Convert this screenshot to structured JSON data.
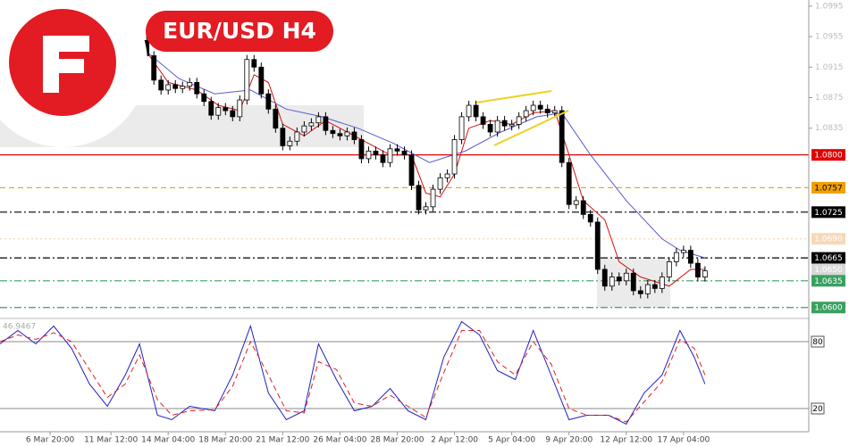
{
  "chart_data": [
    {
      "type": "candlestick",
      "title": "EUR/USD H4",
      "x": [
        41,
        43,
        45,
        47,
        49,
        51,
        53,
        55,
        57,
        59,
        61,
        63,
        65,
        67,
        69,
        71,
        73,
        75,
        77,
        79,
        81,
        83,
        85,
        87,
        89,
        91,
        93,
        95,
        97,
        99,
        101,
        103,
        105,
        107,
        109,
        111,
        113,
        115,
        117,
        119,
        121,
        123,
        125,
        127,
        129,
        131,
        133,
        135,
        137,
        139,
        141,
        143,
        145,
        147,
        149,
        151,
        153,
        155,
        157,
        159,
        161,
        163,
        165,
        167,
        169,
        171,
        173,
        175,
        177,
        179,
        181,
        183,
        185,
        187,
        189,
        191,
        193,
        195,
        197
      ],
      "open": [
        1.095,
        1.093,
        1.0898,
        1.0885,
        1.0892,
        1.0887,
        1.089,
        1.0895,
        1.088,
        1.087,
        1.0852,
        1.0862,
        1.0858,
        1.085,
        1.0872,
        1.0925,
        1.0915,
        1.088,
        1.086,
        1.0835,
        1.0812,
        1.0818,
        1.083,
        1.0838,
        1.0842,
        1.085,
        1.0832,
        1.0828,
        1.0825,
        1.083,
        1.082,
        1.0795,
        1.0805,
        1.08,
        1.079,
        1.0808,
        1.0805,
        1.08,
        1.076,
        1.0728,
        1.0732,
        1.0755,
        1.077,
        1.0775,
        1.082,
        1.085,
        1.0865,
        1.085,
        1.084,
        1.083,
        1.0845,
        1.0838,
        1.084,
        1.085,
        1.0858,
        1.0865,
        1.086,
        1.0855,
        1.0858,
        1.079,
        1.0735,
        1.074,
        1.0722,
        1.0712,
        1.065,
        1.0628,
        1.064,
        1.0635,
        1.0645,
        1.0622,
        1.0618,
        1.063,
        1.0625,
        1.064,
        1.066,
        1.0672,
        1.0675,
        1.0658,
        1.064
      ],
      "high": [
        1.0956,
        1.0936,
        1.0904,
        1.0898,
        1.0898,
        1.0896,
        1.0901,
        1.0901,
        1.0886,
        1.0876,
        1.0868,
        1.0868,
        1.0864,
        1.0878,
        1.0931,
        1.0931,
        1.0921,
        1.0886,
        1.0866,
        1.0841,
        1.0824,
        1.0836,
        1.0844,
        1.0848,
        1.0856,
        1.0856,
        1.0838,
        1.0834,
        1.0836,
        1.0836,
        1.0826,
        1.0811,
        1.0811,
        1.0806,
        1.0814,
        1.0814,
        1.0811,
        1.0806,
        1.0766,
        1.0738,
        1.0761,
        1.0776,
        1.0781,
        1.0826,
        1.0856,
        1.0871,
        1.0871,
        1.0856,
        1.0846,
        1.0851,
        1.0851,
        1.0846,
        1.0856,
        1.0864,
        1.0871,
        1.0871,
        1.0866,
        1.0864,
        1.0864,
        1.0796,
        1.0746,
        1.0746,
        1.0728,
        1.0718,
        1.0656,
        1.0646,
        1.0646,
        1.0651,
        1.0651,
        1.0628,
        1.0636,
        1.0636,
        1.0646,
        1.0666,
        1.0678,
        1.0681,
        1.0681,
        1.0664,
        1.0654
      ],
      "low": [
        1.0924,
        1.0892,
        1.0879,
        1.0879,
        1.0881,
        1.0881,
        1.0884,
        1.0874,
        1.0864,
        1.0846,
        1.0846,
        1.0852,
        1.0844,
        1.0844,
        1.0866,
        1.0909,
        1.0874,
        1.0854,
        1.0829,
        1.0806,
        1.0806,
        1.0812,
        1.0824,
        1.0832,
        1.0836,
        1.0826,
        1.0822,
        1.0819,
        1.0819,
        1.0814,
        1.0789,
        1.0789,
        1.0794,
        1.0784,
        1.0784,
        1.0799,
        1.0794,
        1.0754,
        1.0722,
        1.0722,
        1.0726,
        1.0749,
        1.0764,
        1.0769,
        1.0814,
        1.0844,
        1.0844,
        1.0834,
        1.0824,
        1.0824,
        1.0832,
        1.0832,
        1.0834,
        1.0844,
        1.0852,
        1.0854,
        1.0849,
        1.0849,
        1.0784,
        1.0729,
        1.0729,
        1.0716,
        1.0706,
        1.0644,
        1.0622,
        1.0622,
        1.0629,
        1.0629,
        1.0616,
        1.0612,
        1.0612,
        1.0619,
        1.0619,
        1.0634,
        1.0654,
        1.0666,
        1.0652,
        1.0634,
        1.0634
      ],
      "close": [
        1.093,
        1.0898,
        1.0885,
        1.0892,
        1.0887,
        1.089,
        1.0895,
        1.088,
        1.087,
        1.0852,
        1.0862,
        1.0858,
        1.085,
        1.0872,
        1.0925,
        1.0915,
        1.088,
        1.086,
        1.0835,
        1.0812,
        1.0818,
        1.083,
        1.0838,
        1.0842,
        1.085,
        1.0832,
        1.0828,
        1.0825,
        1.083,
        1.082,
        1.0795,
        1.0805,
        1.08,
        1.079,
        1.0808,
        1.0805,
        1.08,
        1.076,
        1.0728,
        1.0732,
        1.0755,
        1.077,
        1.0775,
        1.082,
        1.085,
        1.0865,
        1.085,
        1.084,
        1.083,
        1.0845,
        1.0838,
        1.084,
        1.085,
        1.0858,
        1.0865,
        1.086,
        1.0855,
        1.0858,
        1.079,
        1.0735,
        1.074,
        1.0722,
        1.0712,
        1.065,
        1.0628,
        1.064,
        1.0635,
        1.0645,
        1.0622,
        1.0618,
        1.063,
        1.0625,
        1.064,
        1.066,
        1.0672,
        1.0675,
        1.0658,
        1.064,
        1.0648
      ],
      "color": "#000000",
      "overlays": [
        {
          "color": "#5a5ad0",
          "x": [
            41,
            50,
            60,
            70,
            80,
            90,
            100,
            110,
            120,
            130,
            140,
            150,
            157,
            165,
            175,
            185,
            190,
            197
          ],
          "values": [
            1.0935,
            1.09,
            1.088,
            1.0885,
            1.086,
            1.085,
            1.0835,
            1.0815,
            1.079,
            1.0805,
            1.083,
            1.085,
            1.0855,
            1.08,
            1.074,
            1.069,
            1.0675,
            1.0665
          ]
        },
        {
          "color": "#d01010",
          "x": [
            41,
            47,
            55,
            61,
            67,
            71,
            75,
            79,
            85,
            91,
            97,
            103,
            109,
            115,
            119,
            123,
            127,
            131,
            137,
            143,
            149,
            155,
            159,
            163,
            169,
            173,
            179,
            187,
            193,
            197
          ],
          "values": [
            1.0935,
            1.0895,
            1.0885,
            1.0865,
            1.0858,
            1.0905,
            1.0895,
            1.084,
            1.0825,
            1.0845,
            1.083,
            1.0815,
            1.08,
            1.08,
            1.075,
            1.0745,
            1.0775,
            1.0835,
            1.0845,
            1.084,
            1.0855,
            1.0858,
            1.08,
            1.074,
            1.0715,
            1.066,
            1.064,
            1.0628,
            1.065,
            1.065
          ]
        }
      ],
      "levels": [
        {
          "value": 1.08,
          "label": "1.0800",
          "color": "#e00000",
          "style": "solid",
          "text_color": "#ffffff"
        },
        {
          "value": 1.0757,
          "label": "1.0757",
          "color": "#f0a000",
          "style": "dash",
          "text_color": "#000000"
        },
        {
          "value": 1.0725,
          "label": "1.0725",
          "color": "#000000",
          "style": "dashdot",
          "text_color": "#ffffff"
        },
        {
          "value": 1.069,
          "label": "1.0690",
          "color": "#f6d8b8",
          "style": "dot",
          "text_color": "#ffffff"
        },
        {
          "value": 1.0665,
          "label": "1.0665",
          "color": "#000000",
          "style": "dashdot",
          "text_color": "#ffffff"
        },
        {
          "value": 1.065,
          "label": "1.0650",
          "color": "#d8d8d8",
          "style": "none",
          "text_color": "#ffffff"
        },
        {
          "value": 1.0635,
          "label": "1.0635",
          "color": "#3aa060",
          "style": "dashdot",
          "text_color": "#ffffff"
        },
        {
          "value": 1.06,
          "label": "1.0600",
          "color": "#3aa060",
          "style": "dashdot",
          "text_color": "#ffffff"
        }
      ],
      "xlim": [
        0,
        226
      ],
      "ylim": [
        1.0588,
        1.1003
      ],
      "yticks": [
        1.0995,
        1.0955,
        1.0915,
        1.0875,
        1.0835
      ],
      "xticks": [
        {
          "value": 14,
          "label": "6 Mar 20:00"
        },
        {
          "value": 31,
          "label": "11 Mar 12:00"
        },
        {
          "value": 47,
          "label": "14 Mar 04:00"
        },
        {
          "value": 63,
          "label": "18 Mar 20:00"
        },
        {
          "value": 79,
          "label": "21 Mar 12:00"
        },
        {
          "value": 95,
          "label": "26 Mar 04:00"
        },
        {
          "value": 111,
          "label": "28 Mar 20:00"
        },
        {
          "value": 127,
          "label": "2 Apr 12:00"
        },
        {
          "value": 143,
          "label": "5 Apr 04:00"
        },
        {
          "value": 159,
          "label": "9 Apr 20:00"
        },
        {
          "value": 175,
          "label": "12 Apr 12:00"
        },
        {
          "value": 191,
          "label": "17 Apr 04:00"
        }
      ]
    },
    {
      "type": "line",
      "readout": "46.9467",
      "x": [
        0,
        5,
        10,
        15,
        20,
        25,
        30,
        35,
        39,
        44,
        48,
        53,
        60,
        65,
        70,
        75,
        80,
        85,
        89,
        94,
        99,
        104,
        109,
        114,
        119,
        124,
        129,
        134,
        139,
        144,
        149,
        154,
        159,
        164,
        170,
        175,
        180,
        185,
        190,
        194,
        197
      ],
      "series": [
        {
          "color": "#2020c0",
          "style": "solid",
          "values": [
            78,
            90,
            78,
            94,
            74,
            42,
            22,
            50,
            78,
            14,
            10,
            22,
            18,
            50,
            94,
            34,
            10,
            18,
            78,
            46,
            18,
            22,
            38,
            18,
            10,
            66,
            98,
            86,
            54,
            46,
            90,
            50,
            10,
            14,
            14,
            6,
            34,
            50,
            90,
            66,
            42
          ]
        },
        {
          "color": "#e02020",
          "style": "dash",
          "values": [
            80,
            86,
            82,
            88,
            80,
            55,
            30,
            42,
            68,
            28,
            14,
            18,
            19,
            40,
            80,
            50,
            18,
            16,
            62,
            55,
            25,
            22,
            32,
            22,
            12,
            52,
            90,
            90,
            62,
            50,
            80,
            60,
            20,
            14,
            14,
            8,
            26,
            44,
            82,
            74,
            50
          ]
        }
      ],
      "xlim": [
        0,
        226
      ],
      "ylim": [
        0,
        100
      ],
      "yticks": [
        20,
        80
      ]
    }
  ]
}
